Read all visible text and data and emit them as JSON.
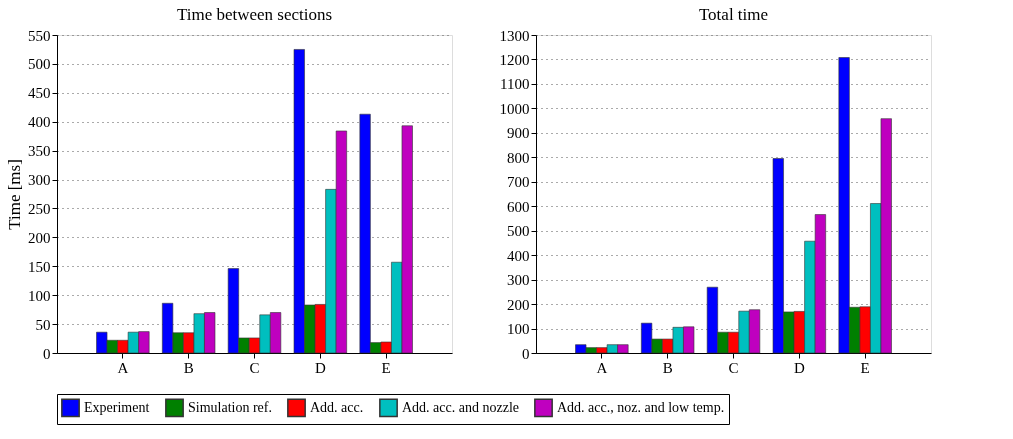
{
  "chart_data": [
    {
      "type": "bar",
      "title": "Time between sections",
      "ylabel": "Time [ms]",
      "categories": [
        "A",
        "B",
        "C",
        "D",
        "E"
      ],
      "series": [
        {
          "name": "Experiment",
          "color": "#0000ff",
          "values": [
            36,
            86,
            146,
            525,
            413
          ]
        },
        {
          "name": "Simulation ref.",
          "color": "#008000",
          "values": [
            22,
            35,
            26,
            83,
            18
          ]
        },
        {
          "name": "Add. acc.",
          "color": "#ff0000",
          "values": [
            22,
            35,
            26,
            84,
            19
          ]
        },
        {
          "name": "Add. acc. and nozzle",
          "color": "#00bfbf",
          "values": [
            36,
            68,
            66,
            283,
            157
          ]
        },
        {
          "name": "Add. acc., noz. and low temp.",
          "color": "#bf00bf",
          "values": [
            37,
            70,
            70,
            384,
            393
          ]
        }
      ],
      "ylim": [
        0,
        550
      ],
      "yticks": [
        0,
        50,
        100,
        150,
        200,
        250,
        300,
        350,
        400,
        450,
        500,
        550
      ],
      "grid": "y",
      "legend": "bottom"
    },
    {
      "type": "bar",
      "title": "Total time",
      "categories": [
        "A",
        "B",
        "C",
        "D",
        "E"
      ],
      "series": [
        {
          "name": "Experiment",
          "color": "#0000ff",
          "values": [
            34,
            122,
            269,
            795,
            1208
          ]
        },
        {
          "name": "Simulation ref.",
          "color": "#008000",
          "values": [
            22,
            57,
            85,
            168,
            187
          ]
        },
        {
          "name": "Add. acc.",
          "color": "#ff0000",
          "values": [
            22,
            57,
            85,
            170,
            189
          ]
        },
        {
          "name": "Add. acc. and nozzle",
          "color": "#00bfbf",
          "values": [
            34,
            105,
            171,
            457,
            611
          ]
        },
        {
          "name": "Add. acc., noz. and low temp.",
          "color": "#bf00bf",
          "values": [
            34,
            107,
            177,
            566,
            958
          ]
        }
      ],
      "ylim": [
        0,
        1300
      ],
      "yticks": [
        0,
        100,
        200,
        300,
        400,
        500,
        600,
        700,
        800,
        900,
        1000,
        1100,
        1200,
        1300
      ],
      "grid": "y",
      "legend": "bottom"
    }
  ]
}
